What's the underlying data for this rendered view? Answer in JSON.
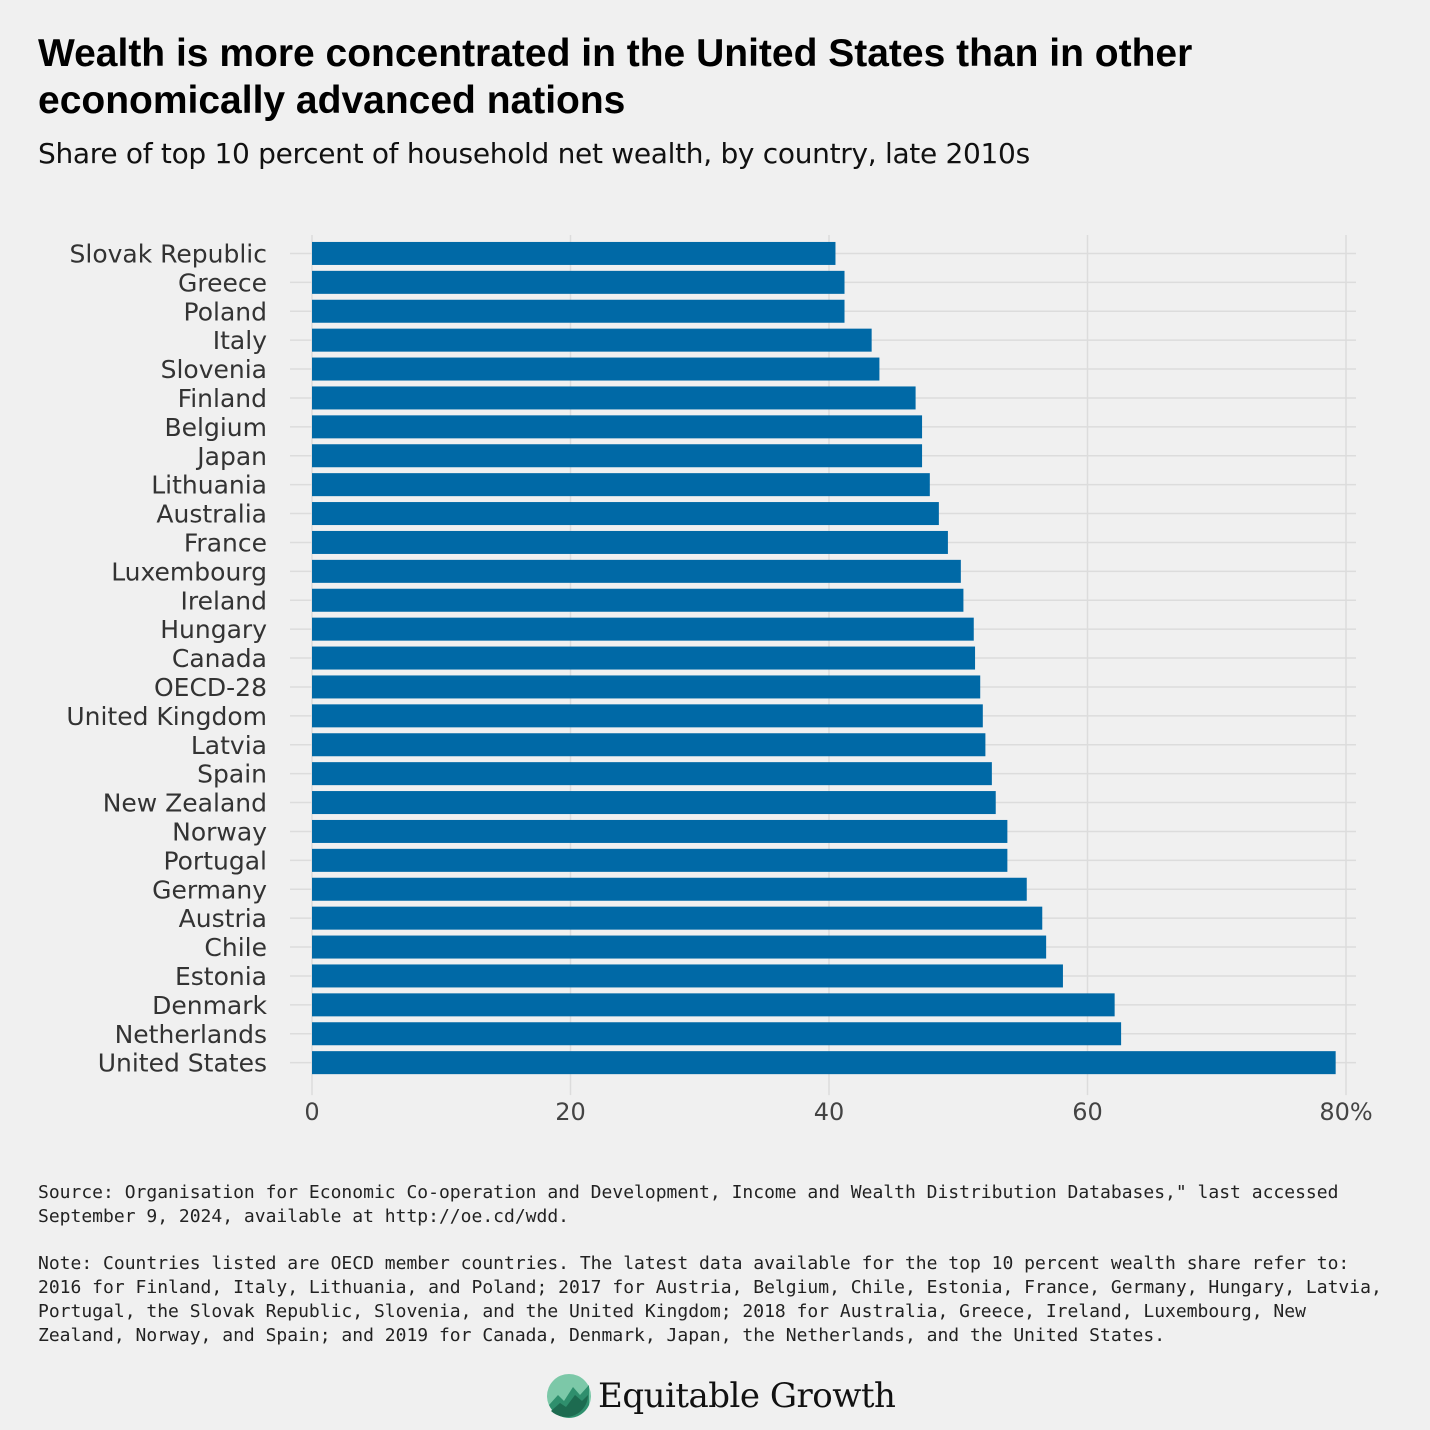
{
  "title": "Wealth is more concentrated in the United States than in other economically advanced nations",
  "subtitle": "Share of top 10 percent of household net wealth, by country, late 2010s",
  "source": "Source: Organisation for Economic Co-operation and Development, Income and Wealth Distribution Databases,\" last accessed September 9, 2024, available at http://oe.cd/wdd.",
  "note": "Note: Countries listed are OECD member countries. The latest data available for the top 10 percent wealth share refer to: 2016 for Finland, Italy, Lithuania, and Poland; 2017 for Austria, Belgium, Chile, Estonia, France, Germany, Hungary, Latvia, Portugal, the Slovak Republic, Slovenia, and the United Kingdom; 2018 for Australia, Greece, Ireland, Luxembourg, New Zealand, Norway, and Spain; and 2019 for Canada, Denmark, Japan, the Netherlands, and the United States.",
  "logo": {
    "text": "Equitable Growth",
    "icon": "equitable-growth-logo-icon"
  },
  "colors": {
    "bar": "#0069a6",
    "grid": "#dcdcdc",
    "background": "#f0f0f0"
  },
  "chart_data": {
    "type": "bar",
    "orientation": "horizontal",
    "title": "Share of top 10 percent of household net wealth, by country, late 2010s",
    "xlabel": "",
    "ylabel": "",
    "xlim": [
      0,
      80
    ],
    "grid": true,
    "ticks": [
      0,
      20,
      40,
      60,
      80
    ],
    "tick_labels": [
      "0",
      "20",
      "40",
      "60",
      "80%"
    ],
    "categories": [
      "Slovak Republic",
      "Greece",
      "Poland",
      "Italy",
      "Slovenia",
      "Finland",
      "Belgium",
      "Japan",
      "Lithuania",
      "Australia",
      "France",
      "Luxembourg",
      "Ireland",
      "Hungary",
      "Canada",
      "OECD-28",
      "United Kingdom",
      "Latvia",
      "Spain",
      "New Zealand",
      "Norway",
      "Portugal",
      "Germany",
      "Austria",
      "Chile",
      "Estonia",
      "Denmark",
      "Netherlands",
      "United States"
    ],
    "values": [
      40.5,
      41.2,
      41.2,
      43.3,
      43.9,
      46.7,
      47.2,
      47.2,
      47.8,
      48.5,
      49.2,
      50.2,
      50.4,
      51.2,
      51.3,
      51.7,
      51.9,
      52.1,
      52.6,
      52.9,
      53.8,
      53.8,
      55.3,
      56.5,
      56.8,
      58.1,
      62.1,
      62.6,
      79.2
    ]
  }
}
